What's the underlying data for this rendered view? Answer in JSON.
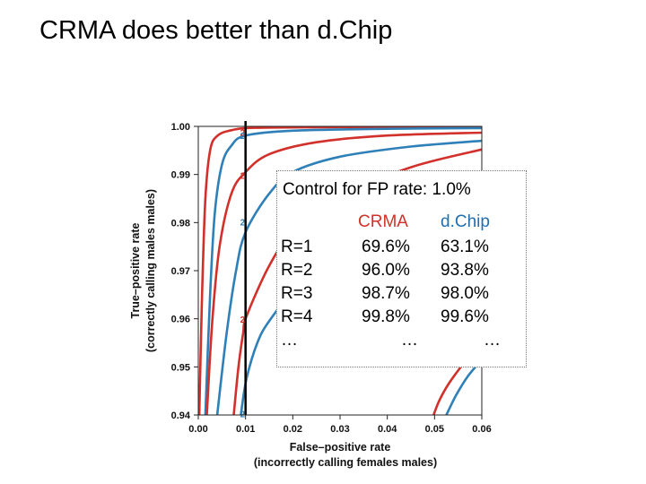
{
  "slide": {
    "title": "CRMA does better than d.Chip"
  },
  "colors": {
    "crma": "#d2302a",
    "dchip": "#2f80b8",
    "threshold": "#000000"
  },
  "chart_data": {
    "type": "line",
    "xlabel_lines": [
      "False–positive rate",
      "(incorrectly calling females males)"
    ],
    "ylabel_lines": [
      "True–positive rate",
      "(correctly calling males males)"
    ],
    "xlim": [
      0.0,
      0.06
    ],
    "ylim": [
      0.94,
      1.0
    ],
    "x_ticks": [
      "0.00",
      "0.01",
      "0.02",
      "0.03",
      "0.04",
      "0.05",
      "0.06"
    ],
    "y_ticks": [
      "0.94",
      "0.95",
      "0.96",
      "0.97",
      "0.98",
      "0.99",
      "1.00"
    ],
    "threshold_line_x": 0.01,
    "threshold_markers": [
      {
        "label": "2",
        "y": 0.9988
      },
      {
        "label": "2",
        "y": 0.9981
      },
      {
        "label": "2",
        "y": 0.9898
      },
      {
        "label": "2",
        "y": 0.9802
      },
      {
        "label": "2",
        "y": 0.9599
      },
      {
        "label": "2",
        "y": 0.9403
      }
    ],
    "series": [
      {
        "method": "CRMA",
        "points": [
          [
            0.0002,
            0.94
          ],
          [
            0.0008,
            0.965
          ],
          [
            0.0015,
            0.985
          ],
          [
            0.0025,
            0.995
          ],
          [
            0.004,
            0.998
          ],
          [
            0.007,
            0.9992
          ],
          [
            0.012,
            0.9997
          ],
          [
            0.03,
            0.99985
          ],
          [
            0.06,
            0.9999
          ]
        ]
      },
      {
        "method": "dChip",
        "points": [
          [
            0.0015,
            0.94
          ],
          [
            0.0025,
            0.965
          ],
          [
            0.0035,
            0.982
          ],
          [
            0.005,
            0.992
          ],
          [
            0.007,
            0.996
          ],
          [
            0.01,
            0.9981
          ],
          [
            0.02,
            0.9991
          ],
          [
            0.04,
            0.9995
          ],
          [
            0.06,
            0.99965
          ]
        ]
      },
      {
        "method": "CRMA",
        "points": [
          [
            0.0018,
            0.94
          ],
          [
            0.003,
            0.96
          ],
          [
            0.0045,
            0.975
          ],
          [
            0.007,
            0.986
          ],
          [
            0.01,
            0.9905
          ],
          [
            0.015,
            0.9942
          ],
          [
            0.025,
            0.9967
          ],
          [
            0.04,
            0.9981
          ],
          [
            0.06,
            0.9987
          ]
        ]
      },
      {
        "method": "dChip",
        "points": [
          [
            0.004,
            0.94
          ],
          [
            0.006,
            0.957
          ],
          [
            0.008,
            0.97
          ],
          [
            0.01,
            0.978
          ],
          [
            0.015,
            0.986
          ],
          [
            0.02,
            0.9905
          ],
          [
            0.03,
            0.9937
          ],
          [
            0.045,
            0.9958
          ],
          [
            0.06,
            0.997
          ]
        ]
      },
      {
        "method": "CRMA",
        "points": [
          [
            0.0075,
            0.94
          ],
          [
            0.0085,
            0.95
          ],
          [
            0.0095,
            0.957
          ],
          [
            0.0102,
            0.9605
          ],
          [
            0.015,
            0.971
          ],
          [
            0.02,
            0.978
          ],
          [
            0.03,
            0.9855
          ],
          [
            0.045,
            0.9915
          ],
          [
            0.06,
            0.9952
          ]
        ]
      },
      {
        "method": "dChip",
        "points": [
          [
            0.009,
            0.94
          ],
          [
            0.0102,
            0.9475
          ],
          [
            0.0125,
            0.955
          ],
          [
            0.015,
            0.9595
          ],
          [
            0.02,
            0.9655
          ],
          [
            0.03,
            0.974
          ],
          [
            0.04,
            0.98
          ],
          [
            0.05,
            0.9848
          ],
          [
            0.06,
            0.9885
          ]
        ]
      },
      {
        "method": "CRMA",
        "points": [
          [
            0.0498,
            0.94
          ],
          [
            0.051,
            0.943
          ],
          [
            0.053,
            0.9465
          ],
          [
            0.056,
            0.9505
          ],
          [
            0.06,
            0.955
          ]
        ]
      },
      {
        "method": "dChip",
        "points": [
          [
            0.0525,
            0.94
          ],
          [
            0.0545,
            0.944
          ],
          [
            0.057,
            0.948
          ],
          [
            0.06,
            0.9515
          ]
        ]
      }
    ]
  },
  "overlay": {
    "heading": "Control for FP rate: 1.0%",
    "col_crma": "CRMA",
    "col_dchip": "d.Chip",
    "rows": [
      {
        "r": "R=1",
        "crma": "69.6%",
        "dchip": "63.1%"
      },
      {
        "r": "R=2",
        "crma": "96.0%",
        "dchip": "93.8%"
      },
      {
        "r": "R=3",
        "crma": "98.7%",
        "dchip": "98.0%"
      },
      {
        "r": "R=4",
        "crma": "99.8%",
        "dchip": "99.6%"
      },
      {
        "r": "…",
        "crma": "…",
        "dchip": "…"
      }
    ]
  }
}
